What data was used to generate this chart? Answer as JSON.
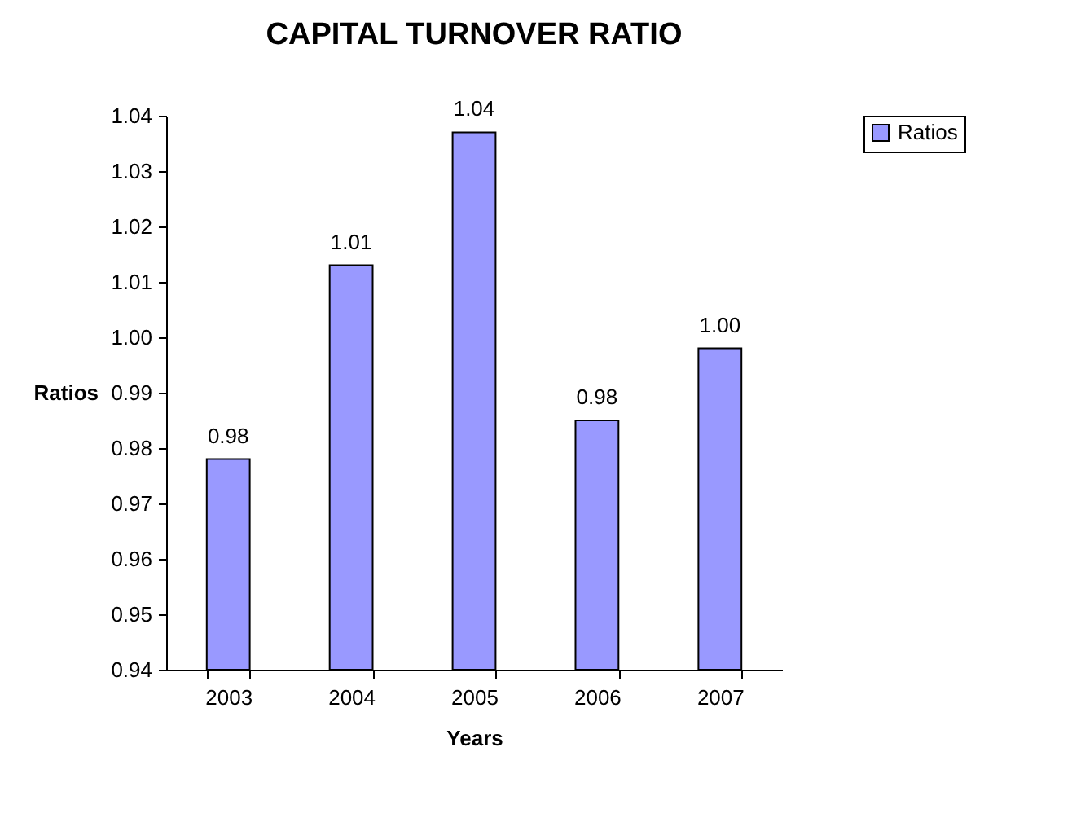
{
  "chart_data": {
    "type": "bar",
    "title": "CAPITAL TURNOVER RATIO",
    "xlabel": "Years",
    "ylabel": "Ratios",
    "categories": [
      "2003",
      "2004",
      "2005",
      "2006",
      "2007"
    ],
    "series": [
      {
        "name": "Ratios",
        "color": "#9999ff",
        "values": [
          0.978,
          1.013,
          1.037,
          0.985,
          0.998
        ]
      }
    ],
    "value_labels": [
      "0.98",
      "1.01",
      "1.04",
      "0.98",
      "1.00"
    ],
    "ylim": [
      0.94,
      1.04
    ],
    "yticks": [
      0.94,
      0.95,
      0.96,
      0.97,
      0.98,
      0.99,
      {
        "value": 1,
        "label": "1.00"
      },
      1.01,
      1.02,
      1.03,
      1.04
    ],
    "grid": false,
    "legend": "right"
  }
}
